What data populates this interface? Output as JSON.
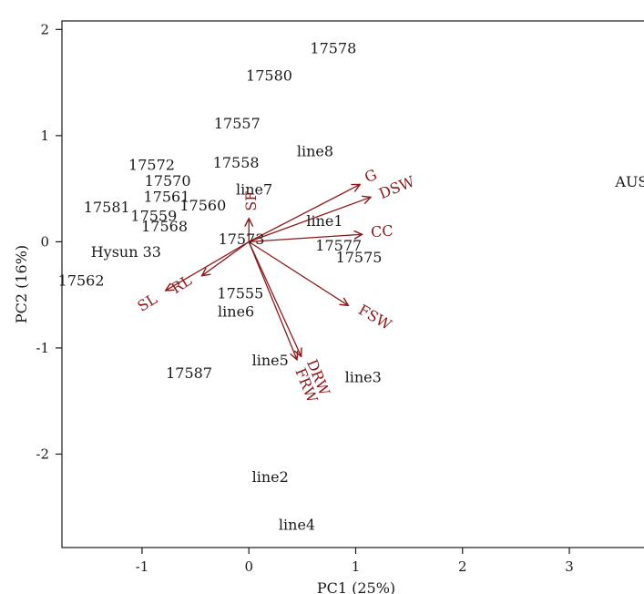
{
  "chart_data": {
    "type": "scatter",
    "title": "",
    "xlabel": "PC1 (25%)",
    "ylabel": "PC2 (16%)",
    "xlim": [
      -1.75,
      3.75
    ],
    "ylim": [
      -2.88,
      2.08
    ],
    "xticks": [
      -1,
      0,
      1,
      2,
      3
    ],
    "yticks": [
      -2,
      -1,
      0,
      1,
      2
    ],
    "grid": false,
    "colors": {
      "points": "#1a1a1a",
      "loadings": "#8b1a1a"
    },
    "points": [
      {
        "label": "17578",
        "x": 0.79,
        "y": 1.82
      },
      {
        "label": "17580",
        "x": 0.19,
        "y": 1.56
      },
      {
        "label": "17557",
        "x": -0.11,
        "y": 1.11
      },
      {
        "label": "line8",
        "x": 0.62,
        "y": 0.85
      },
      {
        "label": "17572",
        "x": -0.91,
        "y": 0.72
      },
      {
        "label": "17558",
        "x": -0.12,
        "y": 0.74
      },
      {
        "label": "17570",
        "x": -0.76,
        "y": 0.57
      },
      {
        "label": "AUSUN",
        "x": 3.7,
        "y": 0.56
      },
      {
        "label": "17561",
        "x": -0.77,
        "y": 0.42
      },
      {
        "label": "line7",
        "x": 0.05,
        "y": 0.49
      },
      {
        "label": "17560",
        "x": -0.43,
        "y": 0.34
      },
      {
        "label": "17581",
        "x": -1.33,
        "y": 0.32
      },
      {
        "label": "17559",
        "x": -0.89,
        "y": 0.24
      },
      {
        "label": "line1",
        "x": 0.71,
        "y": 0.19
      },
      {
        "label": "17568",
        "x": -0.79,
        "y": 0.14
      },
      {
        "label": "17573",
        "x": -0.07,
        "y": 0.02
      },
      {
        "label": "17577",
        "x": 0.84,
        "y": -0.04
      },
      {
        "label": "Hysun 33",
        "x": -1.15,
        "y": -0.1
      },
      {
        "label": "17575",
        "x": 1.03,
        "y": -0.15
      },
      {
        "label": "17562",
        "x": -1.57,
        "y": -0.37
      },
      {
        "label": "17555",
        "x": -0.08,
        "y": -0.49
      },
      {
        "label": "line6",
        "x": -0.12,
        "y": -0.66
      },
      {
        "label": "line5",
        "x": 0.2,
        "y": -1.12
      },
      {
        "label": "17587",
        "x": -0.56,
        "y": -1.24
      },
      {
        "label": "line3",
        "x": 1.07,
        "y": -1.28
      },
      {
        "label": "line2",
        "x": 0.2,
        "y": -2.22
      },
      {
        "label": "line4",
        "x": 0.45,
        "y": -2.67
      }
    ],
    "loadings": [
      {
        "label": "G",
        "x": 1.04,
        "y": 0.54
      },
      {
        "label": "DSW",
        "x": 1.14,
        "y": 0.42
      },
      {
        "label": "CC",
        "x": 1.06,
        "y": 0.07
      },
      {
        "label": "FSW",
        "x": 0.93,
        "y": -0.6
      },
      {
        "label": "DRW",
        "x": 0.49,
        "y": -1.08
      },
      {
        "label": "FRW",
        "x": 0.45,
        "y": -1.11
      },
      {
        "label": "SF",
        "x": 0.0,
        "y": 0.22
      },
      {
        "label": "RL",
        "x": -0.44,
        "y": -0.32
      },
      {
        "label": "SL",
        "x": -0.78,
        "y": -0.46
      }
    ]
  }
}
